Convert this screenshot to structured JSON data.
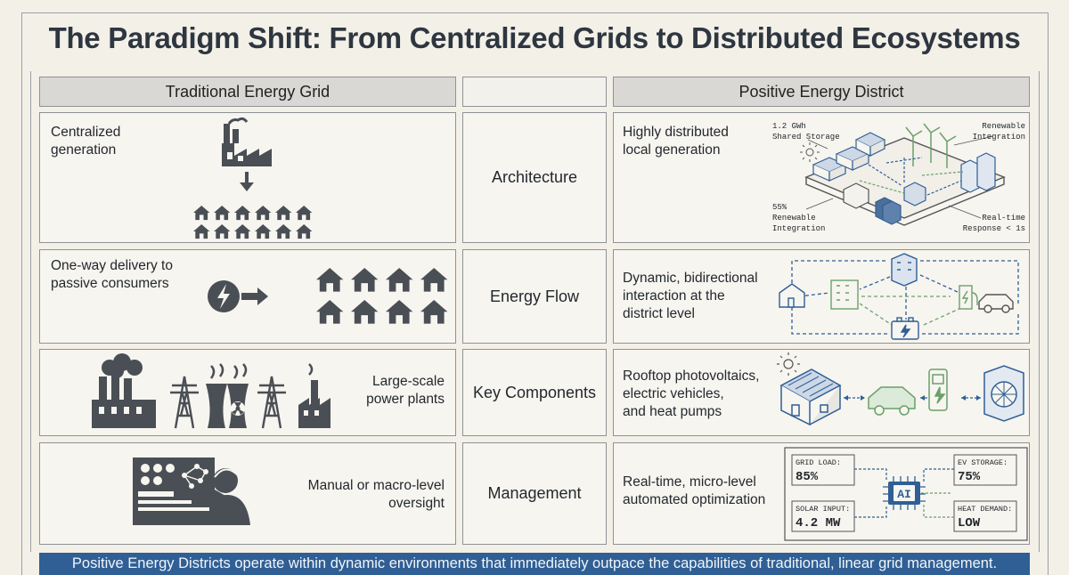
{
  "title": "The Paradigm Shift: From Centralized Grids to Distributed Ecosystems",
  "headers": {
    "traditional": "Traditional Energy Grid",
    "ped": "Positive Energy District"
  },
  "rows": [
    {
      "category": "Architecture",
      "traditional": [
        "Centralized",
        "generation"
      ],
      "ped": [
        "Highly distributed",
        "local generation"
      ],
      "annotations": {
        "storage": [
          "1.2 GWh",
          "Shared Storage"
        ],
        "renewable_tr": [
          "Renewable",
          "Integration"
        ],
        "renewable_bl": [
          "55%",
          "Renewable",
          "Integration"
        ],
        "response": [
          "Real-time",
          "Response < 1s"
        ]
      }
    },
    {
      "category": "Energy Flow",
      "traditional": [
        "One-way delivery to",
        "passive consumers"
      ],
      "ped": [
        "Dynamic, bidirectional",
        "interaction at the",
        "district level"
      ]
    },
    {
      "category": "Key Components",
      "traditional": [
        "Large-scale",
        "power plants"
      ],
      "ped": [
        "Rooftop photovoltaics,",
        "electric vehicles,",
        "and heat pumps"
      ]
    },
    {
      "category": "Management",
      "traditional": [
        "Manual or macro-level",
        "oversight"
      ],
      "ped": [
        "Real-time, micro-level",
        "automated optimization"
      ],
      "dashboard": {
        "grid_load_label": "GRID LOAD:",
        "grid_load_value": "85%",
        "ev_storage_label": "EV STORAGE:",
        "ev_storage_value": "75%",
        "solar_label": "SOLAR INPUT:",
        "solar_value": "4.2 MW",
        "heat_label": "HEAT DEMAND:",
        "heat_value": "LOW",
        "chip_label": "AI"
      }
    }
  ],
  "banner": "Positive Energy Districts operate within dynamic environments that immediately outpace the capabilities of traditional, linear grid management.",
  "colors": {
    "blue": "#2f5f95",
    "green": "#6aa06a",
    "icon_gray": "#4a4f55"
  }
}
